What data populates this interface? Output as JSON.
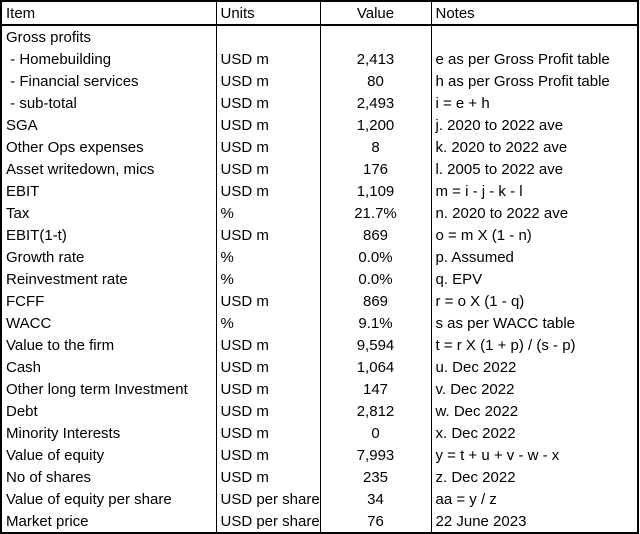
{
  "chart_data": {
    "type": "table",
    "columns": [
      "Item",
      "Units",
      "Value",
      "Notes"
    ],
    "rows": [
      [
        "Gross profits",
        "",
        "",
        ""
      ],
      [
        " - Homebuilding",
        "USD m",
        "2,413",
        "e as per Gross Profit table"
      ],
      [
        " - Financial services",
        "USD m",
        "80",
        "h as per Gross Profit table"
      ],
      [
        " - sub-total",
        "USD m",
        "2,493",
        "i = e + h"
      ],
      [
        "SGA",
        "USD m",
        "1,200",
        "j. 2020 to 2022 ave"
      ],
      [
        "Other Ops expenses",
        "USD m",
        "8",
        "k. 2020 to 2022 ave"
      ],
      [
        "Asset writedown, mics",
        "USD m",
        "176",
        "l. 2005 to 2022 ave"
      ],
      [
        "EBIT",
        "USD m",
        "1,109",
        "m = i - j - k - l"
      ],
      [
        "Tax",
        "%",
        "21.7%",
        "n. 2020 to 2022 ave"
      ],
      [
        "EBIT(1-t)",
        "USD m",
        "869",
        "o = m X (1 - n)"
      ],
      [
        "Growth rate",
        "%",
        "0.0%",
        "p. Assumed"
      ],
      [
        "Reinvestment rate",
        "%",
        "0.0%",
        "q. EPV"
      ],
      [
        "FCFF",
        "USD m",
        "869",
        "r = o X (1 - q)"
      ],
      [
        "WACC",
        "%",
        "9.1%",
        "s as per WACC table"
      ],
      [
        "Value to the firm",
        "USD m",
        "9,594",
        "t = r X (1 + p) / (s - p)"
      ],
      [
        "Cash",
        "USD m",
        "1,064",
        "u. Dec 2022"
      ],
      [
        "Other long term Investment",
        "USD m",
        "147",
        "v. Dec 2022"
      ],
      [
        "Debt",
        "USD m",
        "2,812",
        "w. Dec 2022"
      ],
      [
        "Minority Interests",
        "USD m",
        "0",
        "x. Dec 2022"
      ],
      [
        "Value of equity",
        "USD m",
        "7,993",
        "y = t + u + v - w - x"
      ],
      [
        "No of shares",
        "USD m",
        "235",
        "z. Dec 2022"
      ],
      [
        "Value of equity per share",
        "USD per share",
        "34",
        "aa = y / z"
      ],
      [
        "Market price",
        "USD per share",
        "76",
        "22 June 2023"
      ]
    ]
  },
  "colors": {
    "border": "#000000",
    "text": "#000000",
    "background": "#ffffff"
  }
}
